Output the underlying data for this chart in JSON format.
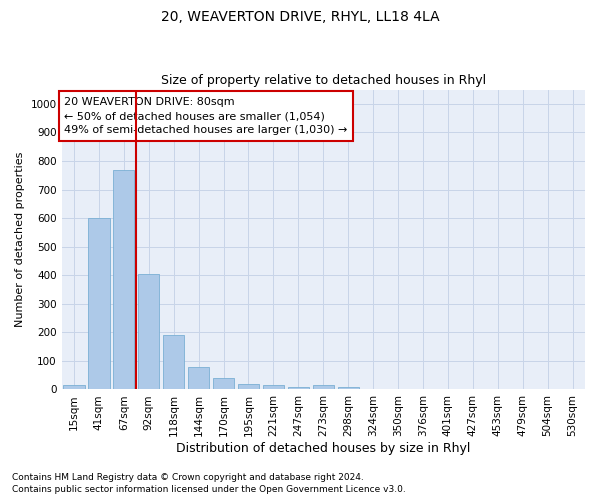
{
  "title": "20, WEAVERTON DRIVE, RHYL, LL18 4LA",
  "subtitle": "Size of property relative to detached houses in Rhyl",
  "xlabel": "Distribution of detached houses by size in Rhyl",
  "ylabel": "Number of detached properties",
  "annotation_line1": "20 WEAVERTON DRIVE: 80sqm",
  "annotation_line2": "← 50% of detached houses are smaller (1,054)",
  "annotation_line3": "49% of semi-detached houses are larger (1,030) →",
  "footer_line1": "Contains HM Land Registry data © Crown copyright and database right 2024.",
  "footer_line2": "Contains public sector information licensed under the Open Government Licence v3.0.",
  "bar_color": "#adc9e8",
  "bar_edge_color": "#7aafd4",
  "vline_color": "#cc0000",
  "vline_x": 2.5,
  "categories": [
    "15sqm",
    "41sqm",
    "67sqm",
    "92sqm",
    "118sqm",
    "144sqm",
    "170sqm",
    "195sqm",
    "221sqm",
    "247sqm",
    "273sqm",
    "298sqm",
    "324sqm",
    "350sqm",
    "376sqm",
    "401sqm",
    "427sqm",
    "453sqm",
    "479sqm",
    "504sqm",
    "530sqm"
  ],
  "bar_heights": [
    15,
    600,
    770,
    405,
    190,
    78,
    40,
    18,
    17,
    10,
    15,
    8,
    0,
    0,
    0,
    0,
    0,
    0,
    0,
    0,
    0
  ],
  "ylim": [
    0,
    1050
  ],
  "yticks": [
    0,
    100,
    200,
    300,
    400,
    500,
    600,
    700,
    800,
    900,
    1000
  ],
  "grid_color": "#c8d4e8",
  "background_color": "#e8eef8",
  "title_fontsize": 10,
  "subtitle_fontsize": 9,
  "ylabel_fontsize": 8,
  "xlabel_fontsize": 9,
  "tick_fontsize": 7.5,
  "annotation_fontsize": 8,
  "footer_fontsize": 6.5,
  "annotation_box_color": "#ffffff",
  "annotation_box_edge_color": "#cc0000"
}
